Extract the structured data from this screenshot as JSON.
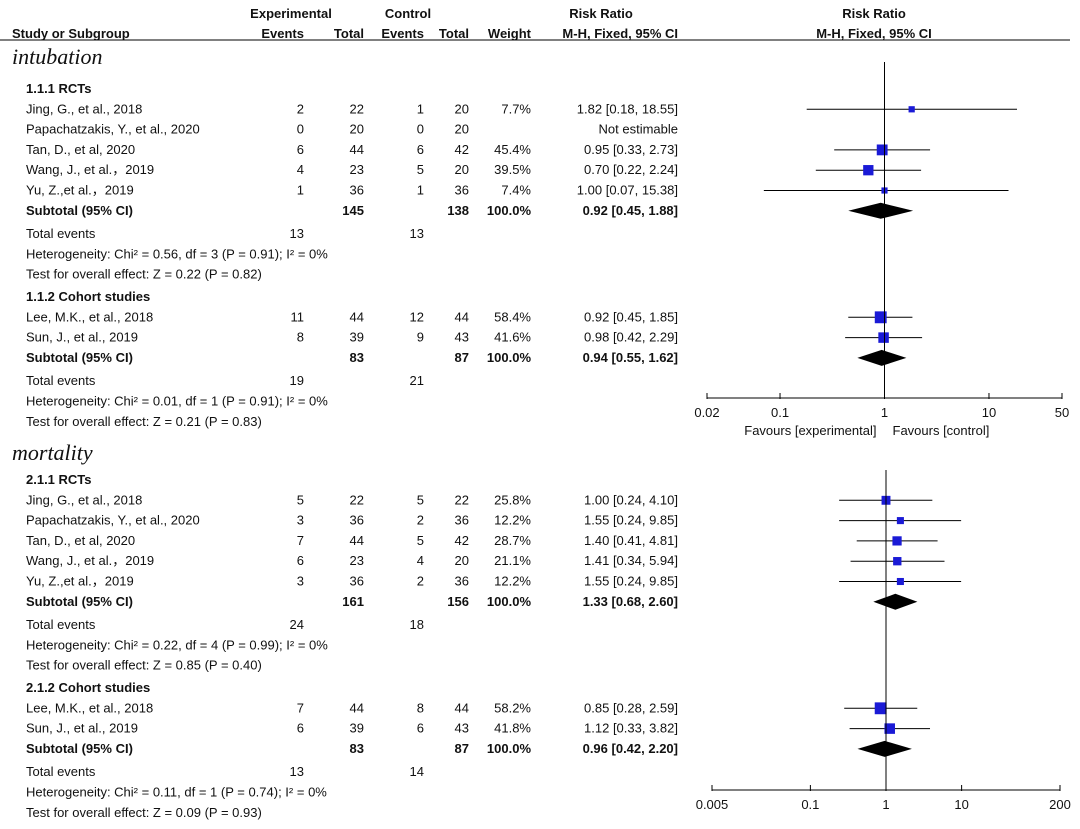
{
  "chart_data": {
    "type": "forest",
    "header": {
      "study_col": "Study or Subgroup",
      "experimental": "Experimental",
      "control": "Control",
      "events": "Events",
      "total": "Total",
      "weight": "Weight",
      "risk_ratio": "Risk Ratio",
      "method": "M-H, Fixed, 95% CI"
    },
    "panels": [
      {
        "id": "intubation",
        "title": "intubation",
        "axis": {
          "ticks": [
            0.02,
            0.1,
            1,
            10,
            50
          ],
          "tick_labels": [
            "0.02",
            "0.1",
            "1",
            "10",
            "50"
          ],
          "range": [
            0.02,
            50
          ],
          "favours_left": "Favours [experimental]",
          "favours_right": "Favours [control]"
        },
        "groups": [
          {
            "label": "1.1.1 RCTs",
            "studies": [
              {
                "name": "Jing, G., et al., 2018",
                "e_events": "2",
                "e_total": "22",
                "c_events": "1",
                "c_total": "20",
                "weight": "7.7%",
                "rr_text": "1.82 [0.18, 18.55]",
                "rr": 1.82,
                "lo": 0.18,
                "hi": 18.55,
                "w": 7.7
              },
              {
                "name": "Papachatzakis, Y., et al., 2020",
                "e_events": "0",
                "e_total": "20",
                "c_events": "0",
                "c_total": "20",
                "weight": "",
                "rr_text": "Not estimable",
                "rr": null,
                "lo": null,
                "hi": null,
                "w": 0
              },
              {
                "name": "Tan, D., et al, 2020",
                "e_events": "6",
                "e_total": "44",
                "c_events": "6",
                "c_total": "42",
                "weight": "45.4%",
                "rr_text": "0.95 [0.33, 2.73]",
                "rr": 0.95,
                "lo": 0.33,
                "hi": 2.73,
                "w": 45.4
              },
              {
                "name": "Wang, J., et al.，2019",
                "e_events": "4",
                "e_total": "23",
                "c_events": "5",
                "c_total": "20",
                "weight": "39.5%",
                "rr_text": "0.70 [0.22, 2.24]",
                "rr": 0.7,
                "lo": 0.22,
                "hi": 2.24,
                "w": 39.5
              },
              {
                "name": "Yu, Z.,et al.，2019",
                "e_events": "1",
                "e_total": "36",
                "c_events": "1",
                "c_total": "36",
                "weight": "7.4%",
                "rr_text": "1.00 [0.07, 15.38]",
                "rr": 1.0,
                "lo": 0.07,
                "hi": 15.38,
                "w": 7.4
              }
            ],
            "subtotal": {
              "label": "Subtotal (95% CI)",
              "e_total": "145",
              "c_total": "138",
              "weight": "100.0%",
              "rr_text": "0.92 [0.45, 1.88]",
              "rr": 0.92,
              "lo": 0.45,
              "hi": 1.88
            },
            "total_events": {
              "label": "Total events",
              "e": "13",
              "c": "13"
            },
            "heterogeneity": "Heterogeneity: Chi² = 0.56, df = 3 (P = 0.91); I² = 0%",
            "overall": "Test for overall effect: Z = 0.22 (P = 0.82)"
          },
          {
            "label": "1.1.2 Cohort studies",
            "studies": [
              {
                "name": "Lee, M.K., et al., 2018",
                "e_events": "11",
                "e_total": "44",
                "c_events": "12",
                "c_total": "44",
                "weight": "58.4%",
                "rr_text": "0.92 [0.45, 1.85]",
                "rr": 0.92,
                "lo": 0.45,
                "hi": 1.85,
                "w": 58.4
              },
              {
                "name": "Sun, J., et al., 2019",
                "e_events": "8",
                "e_total": "39",
                "c_events": "9",
                "c_total": "43",
                "weight": "41.6%",
                "rr_text": "0.98 [0.42, 2.29]",
                "rr": 0.98,
                "lo": 0.42,
                "hi": 2.29,
                "w": 41.6
              }
            ],
            "subtotal": {
              "label": "Subtotal (95% CI)",
              "e_total": "83",
              "c_total": "87",
              "weight": "100.0%",
              "rr_text": "0.94 [0.55, 1.62]",
              "rr": 0.94,
              "lo": 0.55,
              "hi": 1.62
            },
            "total_events": {
              "label": "Total events",
              "e": "19",
              "c": "21"
            },
            "heterogeneity": "Heterogeneity: Chi² = 0.01, df = 1 (P = 0.91); I² = 0%",
            "overall": "Test for overall effect: Z = 0.21 (P = 0.83)"
          }
        ]
      },
      {
        "id": "mortality",
        "title": "mortality",
        "axis": {
          "ticks": [
            0.005,
            0.1,
            1,
            10,
            200
          ],
          "tick_labels": [
            "0.005",
            "0.1",
            "1",
            "10",
            "200"
          ],
          "range": [
            0.005,
            200
          ],
          "favours_left": "",
          "favours_right": ""
        },
        "groups": [
          {
            "label": "2.1.1 RCTs",
            "studies": [
              {
                "name": "Jing, G., et al., 2018",
                "e_events": "5",
                "e_total": "22",
                "c_events": "5",
                "c_total": "22",
                "weight": "25.8%",
                "rr_text": "1.00 [0.24, 4.10]",
                "rr": 1.0,
                "lo": 0.24,
                "hi": 4.1,
                "w": 25.8
              },
              {
                "name": "Papachatzakis, Y., et al., 2020",
                "e_events": "3",
                "e_total": "36",
                "c_events": "2",
                "c_total": "36",
                "weight": "12.2%",
                "rr_text": "1.55 [0.24, 9.85]",
                "rr": 1.55,
                "lo": 0.24,
                "hi": 9.85,
                "w": 12.2
              },
              {
                "name": "Tan, D., et al, 2020",
                "e_events": "7",
                "e_total": "44",
                "c_events": "5",
                "c_total": "42",
                "weight": "28.7%",
                "rr_text": "1.40 [0.41, 4.81]",
                "rr": 1.4,
                "lo": 0.41,
                "hi": 4.81,
                "w": 28.7
              },
              {
                "name": "Wang, J., et al.，2019",
                "e_events": "6",
                "e_total": "23",
                "c_events": "4",
                "c_total": "20",
                "weight": "21.1%",
                "rr_text": "1.41 [0.34, 5.94]",
                "rr": 1.41,
                "lo": 0.34,
                "hi": 5.94,
                "w": 21.1
              },
              {
                "name": "Yu, Z.,et al.，2019",
                "e_events": "3",
                "e_total": "36",
                "c_events": "2",
                "c_total": "36",
                "weight": "12.2%",
                "rr_text": "1.55 [0.24, 9.85]",
                "rr": 1.55,
                "lo": 0.24,
                "hi": 9.85,
                "w": 12.2
              }
            ],
            "subtotal": {
              "label": "Subtotal (95% CI)",
              "e_total": "161",
              "c_total": "156",
              "weight": "100.0%",
              "rr_text": "1.33 [0.68, 2.60]",
              "rr": 1.33,
              "lo": 0.68,
              "hi": 2.6
            },
            "total_events": {
              "label": "Total events",
              "e": "24",
              "c": "18"
            },
            "heterogeneity": "Heterogeneity: Chi² = 0.22, df = 4 (P = 0.99); I² = 0%",
            "overall": "Test for overall effect: Z = 0.85 (P = 0.40)"
          },
          {
            "label": "2.1.2 Cohort studies",
            "studies": [
              {
                "name": "Lee, M.K., et al., 2018",
                "e_events": "7",
                "e_total": "44",
                "c_events": "8",
                "c_total": "44",
                "weight": "58.2%",
                "rr_text": "0.85 [0.28, 2.59]",
                "rr": 0.85,
                "lo": 0.28,
                "hi": 2.59,
                "w": 58.2
              },
              {
                "name": "Sun, J., et al., 2019",
                "e_events": "6",
                "e_total": "39",
                "c_events": "6",
                "c_total": "43",
                "weight": "41.8%",
                "rr_text": "1.12 [0.33, 3.82]",
                "rr": 1.12,
                "lo": 0.33,
                "hi": 3.82,
                "w": 41.8
              }
            ],
            "subtotal": {
              "label": "Subtotal (95% CI)",
              "e_total": "83",
              "c_total": "87",
              "weight": "100.0%",
              "rr_text": "0.96 [0.42, 2.20]",
              "rr": 0.96,
              "lo": 0.42,
              "hi": 2.2
            },
            "total_events": {
              "label": "Total events",
              "e": "13",
              "c": "14"
            },
            "heterogeneity": "Heterogeneity: Chi² = 0.11, df = 1 (P = 0.74); I² = 0%",
            "overall": "Test for overall effect: Z = 0.09 (P = 0.93)"
          }
        ]
      }
    ]
  },
  "colors": {
    "marker": "#1a1ad6",
    "line": "#000000",
    "text": "#111111"
  }
}
